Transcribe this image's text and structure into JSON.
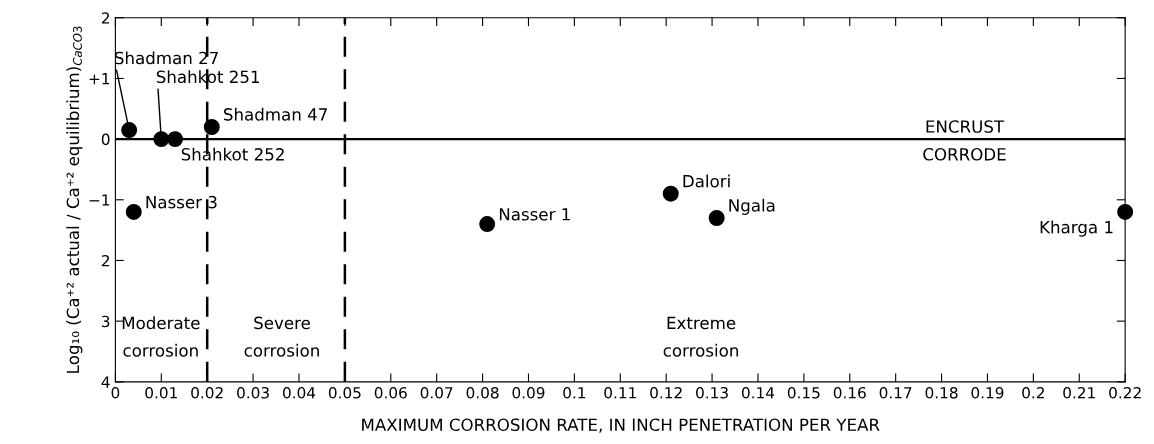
{
  "chart_data": {
    "type": "scatter",
    "xlabel": "MAXIMUM CORROSION RATE, IN INCH PENETRATION PER YEAR",
    "ylabel": "Log₁₀ (Ca⁺² actual / Ca⁺² equilibrium)$_{CaCO3}$",
    "x": [
      0.003,
      0.01,
      0.013,
      0.021,
      0.004,
      0.081,
      0.121,
      0.131,
      0.22
    ],
    "values": [
      0.15,
      0,
      0,
      0.2,
      -1.2,
      -1.4,
      -0.9,
      -1.3,
      -1.2
    ],
    "color": "#000000",
    "marker": "circle",
    "grid": false,
    "xlim": [
      0,
      0.22
    ],
    "xticks": [
      0,
      0.01,
      0.02,
      0.03,
      0.04,
      0.05,
      0.06,
      0.07,
      0.08,
      0.09,
      0.1,
      0.11,
      0.12,
      0.13,
      0.14,
      0.15,
      0.16,
      0.17,
      0.18,
      0.19,
      0.2,
      0.21,
      0.22
    ],
    "ylim": [
      -4,
      2
    ],
    "yticks": [
      2,
      {
        "value": 1,
        "label": "+1"
      },
      0,
      {
        "value": -1,
        "label": "−1"
      },
      {
        "value": -2,
        "label": "2"
      },
      {
        "value": -3,
        "label": "3"
      },
      {
        "value": -4,
        "label": "4"
      }
    ],
    "ref_lines": [
      {
        "axis": "y",
        "value": 0,
        "line_style": "solid",
        "color": "#000000"
      },
      {
        "axis": "x",
        "value": 0.02,
        "line_style": "dashed",
        "color": "#000000"
      },
      {
        "axis": "x",
        "value": 0.05,
        "line_style": "dashed",
        "color": "#000000"
      }
    ],
    "annotations": [
      "Moderate\ncorrosion",
      "Severe\ncorrosion",
      "Extreme\ncorrosion",
      {
        "text": "Shadman 27",
        "x": 0.003,
        "y": 0.15
      },
      {
        "text": "Shahkot 251",
        "x": 0.01,
        "y": 0
      },
      {
        "text": "Shahkot 252",
        "x": 0.013,
        "y": 0
      },
      {
        "text": "Shadman 47",
        "x": 0.021,
        "y": 0.2
      },
      {
        "text": "Nasser 3",
        "x": 0.004,
        "y": -1.2
      },
      {
        "text": "Nasser 1",
        "x": 0.081,
        "y": -1.4
      },
      {
        "text": "Dalori",
        "x": 0.121,
        "y": -0.9
      },
      {
        "text": "Ngala",
        "x": 0.131,
        "y": -1.3
      },
      {
        "text": "Kharga 1",
        "x": 0.22,
        "y": -1.2
      },
      {
        "text": "ENCRUST",
        "x": 0.185,
        "y": 0
      },
      {
        "text": "CORRODE",
        "x": 0.185,
        "y": 0
      }
    ]
  }
}
